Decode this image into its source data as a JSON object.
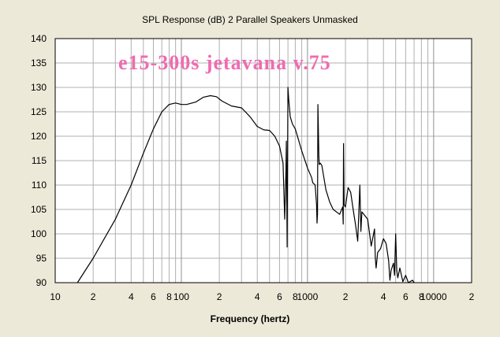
{
  "chart_data": {
    "type": "line",
    "title": "SPL Response (dB)   2 Parallel Speakers   Unmasked",
    "annotation": "e15-300s jetavana v.75",
    "annotation_color": "#f06bb0",
    "xlabel": "Frequency (hertz)",
    "ylabel": "",
    "xscale": "log",
    "xlim": [
      10,
      20000
    ],
    "ylim": [
      90,
      140
    ],
    "grid": true,
    "legend": "none",
    "line_color": "#000000",
    "plot_background": "#ffffff",
    "y_ticks": [
      90,
      95,
      100,
      105,
      110,
      115,
      120,
      125,
      130,
      135,
      140
    ],
    "y_tick_labels": [
      "90",
      "95",
      "100",
      "105",
      "110",
      "115",
      "120",
      "125",
      "130",
      "135",
      "140"
    ],
    "x_ticks": [
      10,
      20,
      40,
      60,
      80,
      100,
      200,
      400,
      600,
      800,
      1000,
      2000,
      4000,
      6000,
      8000,
      10000,
      20000
    ],
    "x_tick_labels": [
      "10",
      "2",
      "4",
      "6",
      "8",
      "100",
      "2",
      "4",
      "6",
      "8",
      "1000",
      "2",
      "4",
      "6",
      "8",
      "10000",
      "2"
    ],
    "series": [
      {
        "x": [
          15,
          20,
          30,
          40,
          50,
          60,
          70,
          80,
          90,
          100,
          110,
          130,
          150,
          170,
          190,
          210,
          250,
          300,
          350,
          400,
          450,
          500,
          550,
          600,
          640,
          660,
          675,
          680,
          690,
          700,
          710,
          730,
          760,
          800,
          900,
          1000,
          1080,
          1100,
          1150,
          1180,
          1190,
          1200,
          1210,
          1230,
          1240,
          1260,
          1300,
          1400,
          1500,
          1600,
          1800,
          1900,
          1920,
          1930,
          1950,
          2000,
          2100,
          2200,
          2300,
          2400,
          2500,
          2600,
          2650,
          2700,
          2800,
          3000,
          3200,
          3400,
          3450,
          3500,
          3600,
          3800,
          4000,
          4200,
          4400,
          4500,
          4600,
          4800,
          4900,
          5000,
          5100,
          5200,
          5400,
          5700,
          6000,
          6300,
          6800,
          7000
        ],
        "y": [
          90,
          95,
          103,
          110,
          116.5,
          121.5,
          125,
          126.5,
          126.8,
          126.5,
          126.5,
          127,
          128,
          128.3,
          128.1,
          127.2,
          126.2,
          125.8,
          124,
          122,
          121.3,
          121.2,
          120,
          118,
          114.5,
          103,
          113,
          119,
          97.3,
          130,
          127.5,
          124,
          122.5,
          121.5,
          117,
          113.5,
          111.5,
          110.5,
          110,
          106,
          102.2,
          104,
          126.5,
          116,
          114.2,
          114.5,
          114,
          109,
          106.5,
          105,
          104,
          105.5,
          102,
          118.5,
          106,
          105.5,
          109.5,
          108.5,
          105,
          102,
          98.5,
          110,
          100.5,
          104.5,
          104,
          103,
          97.5,
          101,
          95,
          93,
          96.2,
          97,
          99,
          98,
          94.5,
          90.5,
          92.5,
          94,
          91.5,
          100,
          92.5,
          91,
          93,
          90.2,
          91.5,
          90,
          90.5,
          90
        ]
      }
    ]
  }
}
